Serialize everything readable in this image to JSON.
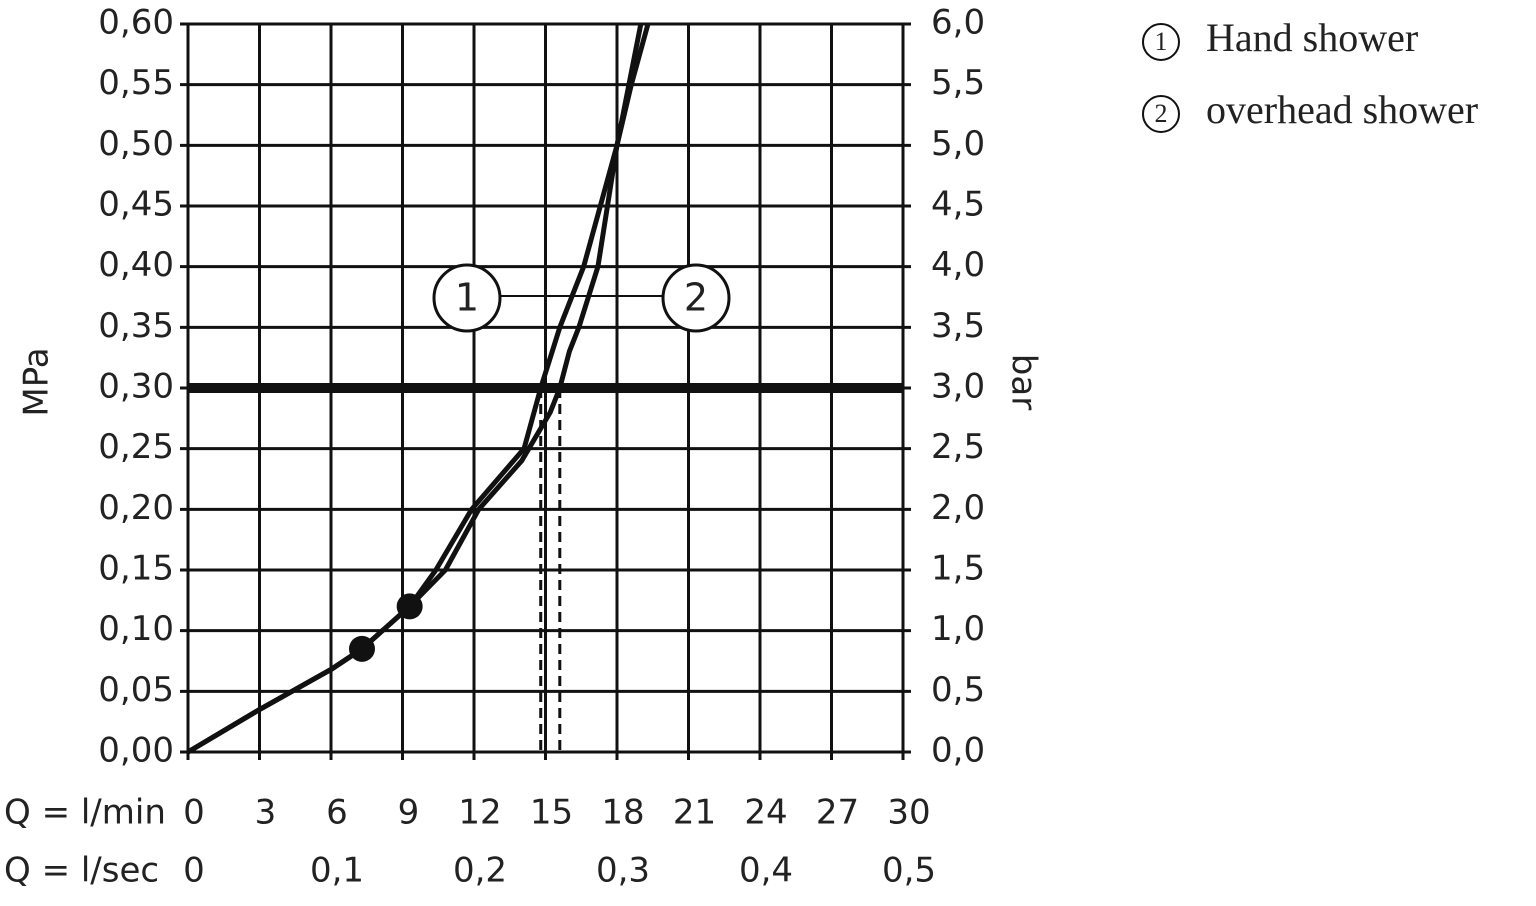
{
  "chart_data": {
    "type": "line",
    "y_label": "MPa",
    "y2_label": "bar",
    "x_label": "Q = l/min",
    "x2_label": "Q = l/sec",
    "xlim": [
      0,
      30
    ],
    "xticks": [
      0,
      3,
      6,
      9,
      12,
      15,
      18,
      21,
      24,
      27,
      30
    ],
    "x2lim": [
      0,
      0.5
    ],
    "x2ticks": [
      0,
      {
        "value": 0.1,
        "label": "0,1"
      },
      {
        "value": 0.2,
        "label": "0,2"
      },
      {
        "value": 0.3,
        "label": "0,3"
      },
      {
        "value": 0.4,
        "label": "0,4"
      },
      {
        "value": 0.5,
        "label": "0,5"
      }
    ],
    "ylim": [
      0,
      0.6
    ],
    "yticks": [
      {
        "value": 0,
        "label": "0,00"
      },
      {
        "value": 0.05,
        "label": "0,05"
      },
      {
        "value": 0.1,
        "label": "0,10"
      },
      {
        "value": 0.15,
        "label": "0,15"
      },
      {
        "value": 0.2,
        "label": "0,20"
      },
      {
        "value": 0.25,
        "label": "0,25"
      },
      {
        "value": 0.3,
        "label": "0,30"
      },
      {
        "value": 0.35,
        "label": "0,35"
      },
      {
        "value": 0.4,
        "label": "0,40"
      },
      {
        "value": 0.45,
        "label": "0,45"
      },
      {
        "value": 0.5,
        "label": "0,50"
      },
      {
        "value": 0.55,
        "label": "0,55"
      },
      {
        "value": 0.6,
        "label": "0,60"
      }
    ],
    "y2lim": [
      0,
      6
    ],
    "y2ticks": [
      {
        "value": 0,
        "label": "0,0"
      },
      {
        "value": 0.5,
        "label": "0,5"
      },
      {
        "value": 1,
        "label": "1,0"
      },
      {
        "value": 1.5,
        "label": "1,5"
      },
      {
        "value": 2,
        "label": "2,0"
      },
      {
        "value": 2.5,
        "label": "2,5"
      },
      {
        "value": 3,
        "label": "3,0"
      },
      {
        "value": 3.5,
        "label": "3,5"
      },
      {
        "value": 4,
        "label": "4,0"
      },
      {
        "value": 4.5,
        "label": "4,5"
      },
      {
        "value": 5,
        "label": "5,0"
      },
      {
        "value": 5.5,
        "label": "5,5"
      },
      {
        "value": 6,
        "label": "6,0"
      }
    ],
    "grid": true,
    "reference_y": 0.3,
    "color": "#111111",
    "series": [
      {
        "name": "Hand shower",
        "label": "1",
        "color": "#111111",
        "x": [
          0,
          3,
          6,
          7.3,
          9.3,
          10.4,
          11.9,
          14.1,
          14.8,
          15.6,
          16.6,
          17.3,
          18,
          18.5,
          19
        ],
        "values": [
          0,
          0.035,
          0.068,
          0.085,
          0.12,
          0.15,
          0.2,
          0.25,
          0.3,
          0.35,
          0.4,
          0.45,
          0.5,
          0.55,
          0.6
        ],
        "marker_x": 7.3,
        "marker_y": 0.085,
        "drop_x": 14.8
      },
      {
        "name": "overhead shower",
        "label": "2",
        "color": "#111111",
        "x": [
          0,
          3,
          6,
          7.3,
          9.3,
          10.8,
          12.2,
          14,
          15.2,
          15.6,
          16,
          16.4,
          17.2,
          17.6,
          18,
          18.6,
          19.3
        ],
        "values": [
          0,
          0.035,
          0.068,
          0.085,
          0.12,
          0.15,
          0.2,
          0.24,
          0.28,
          0.3,
          0.33,
          0.35,
          0.4,
          0.45,
          0.5,
          0.55,
          0.6
        ],
        "marker_x": 9.3,
        "marker_y": 0.12,
        "drop_x": 15.6
      }
    ]
  }
}
